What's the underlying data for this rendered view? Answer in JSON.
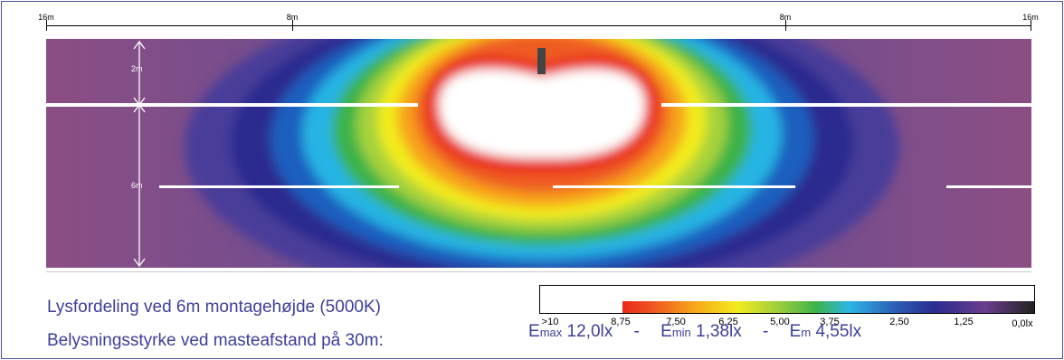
{
  "ruler": {
    "labels": [
      "16m",
      "8m",
      "8m",
      "16m"
    ]
  },
  "dimensions": {
    "upper": "2m",
    "lower": "6m"
  },
  "captions": {
    "distribution": "Lysfordeling ved 6m montagehøjde (5000K)",
    "illuminance": "Belysningsstyrke ved masteafstand på 30m:"
  },
  "legend": {
    "labels": [
      ">10",
      "8,75",
      "7,50",
      "6,25",
      "5,00",
      "3,75",
      "2,50",
      "1,25",
      "0,0lx"
    ],
    "colors": [
      "#ffffff",
      "#e8281e",
      "#f7a21a",
      "#f2ec1e",
      "#3cb34a",
      "#2eb6e4",
      "#2a2c8f",
      "#6a3d8e",
      "#222222"
    ]
  },
  "stats": {
    "emax_symbol": "E",
    "emax_sub": "max",
    "emax_value": "12,0lx",
    "emin_symbol": "E",
    "emin_sub": "min",
    "emin_value": "1,38lx",
    "em_symbol": "E",
    "em_sub": "m",
    "em_value": "4,55lx",
    "separator": "-"
  }
}
